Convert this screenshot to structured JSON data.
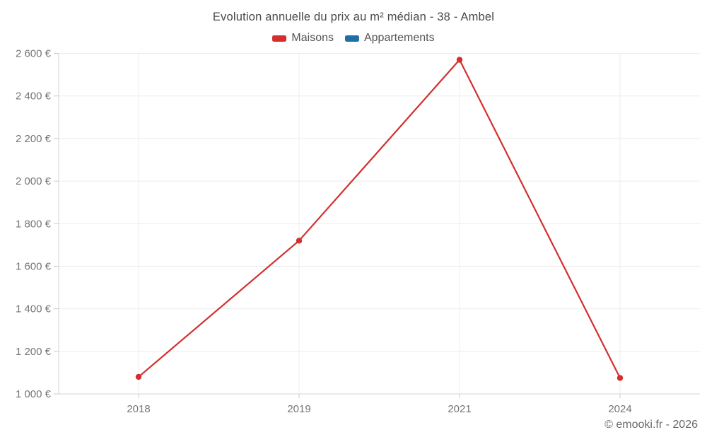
{
  "header": {
    "title": "Evolution annuelle du prix au m² médian - 38 - Ambel"
  },
  "legend": {
    "items": [
      {
        "id": "maisons",
        "label": "Maisons",
        "color": "#d32f2f"
      },
      {
        "id": "appartements",
        "label": "Appartements",
        "color": "#1d6fa5"
      }
    ]
  },
  "chart_data": {
    "type": "line",
    "title": "Evolution annuelle du prix au m² médian - 38 - Ambel",
    "categories": [
      "2018",
      "2019",
      "2021",
      "2024"
    ],
    "series": [
      {
        "name": "Maisons",
        "color": "#d32f2f",
        "values": [
          1080,
          1720,
          2570,
          1075
        ]
      },
      {
        "name": "Appartements",
        "color": "#1d6fa5",
        "values": []
      }
    ],
    "xlabel": "",
    "ylabel": "",
    "ylim": [
      1000,
      2600
    ],
    "y_tick_step": 200,
    "y_tick_labels": [
      "1 000 €",
      "1 200 €",
      "1 400 €",
      "1 600 €",
      "1 800 €",
      "2 000 €",
      "2 200 €",
      "2 400 €",
      "2 600 €"
    ],
    "grid": true,
    "legend_position": "top"
  },
  "footer": {
    "copyright": "© emooki.fr - 2026"
  },
  "colors": {
    "grid": "#ececec",
    "axis": "#d4d4d4",
    "tick": "#c9c9c9",
    "tick_text": "#757575",
    "title_text": "#4a4a4a"
  }
}
